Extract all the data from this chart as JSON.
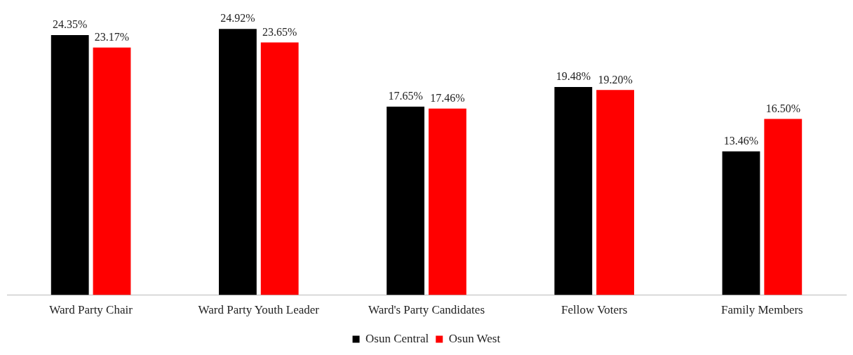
{
  "chart_data": {
    "type": "bar",
    "categories": [
      "Ward Party Chair",
      "Ward Party Youth Leader",
      "Ward's Party Candidates",
      "Fellow Voters",
      "Family Members"
    ],
    "series": [
      {
        "name": "Osun Central",
        "color": "#000000",
        "values": [
          24.35,
          24.92,
          17.65,
          19.48,
          13.46
        ],
        "value_labels": [
          "24.35%",
          "24.92%",
          "17.65%",
          "19.48%",
          "13.46%"
        ]
      },
      {
        "name": "Osun West",
        "color": "#ff0000",
        "values": [
          23.17,
          23.65,
          17.46,
          19.2,
          16.5
        ],
        "value_labels": [
          "23.17%",
          "23.65%",
          "17.46%",
          "19.20%",
          "16.50%"
        ]
      }
    ],
    "grid": false,
    "legend": "bottom",
    "tick_labels": "x"
  }
}
